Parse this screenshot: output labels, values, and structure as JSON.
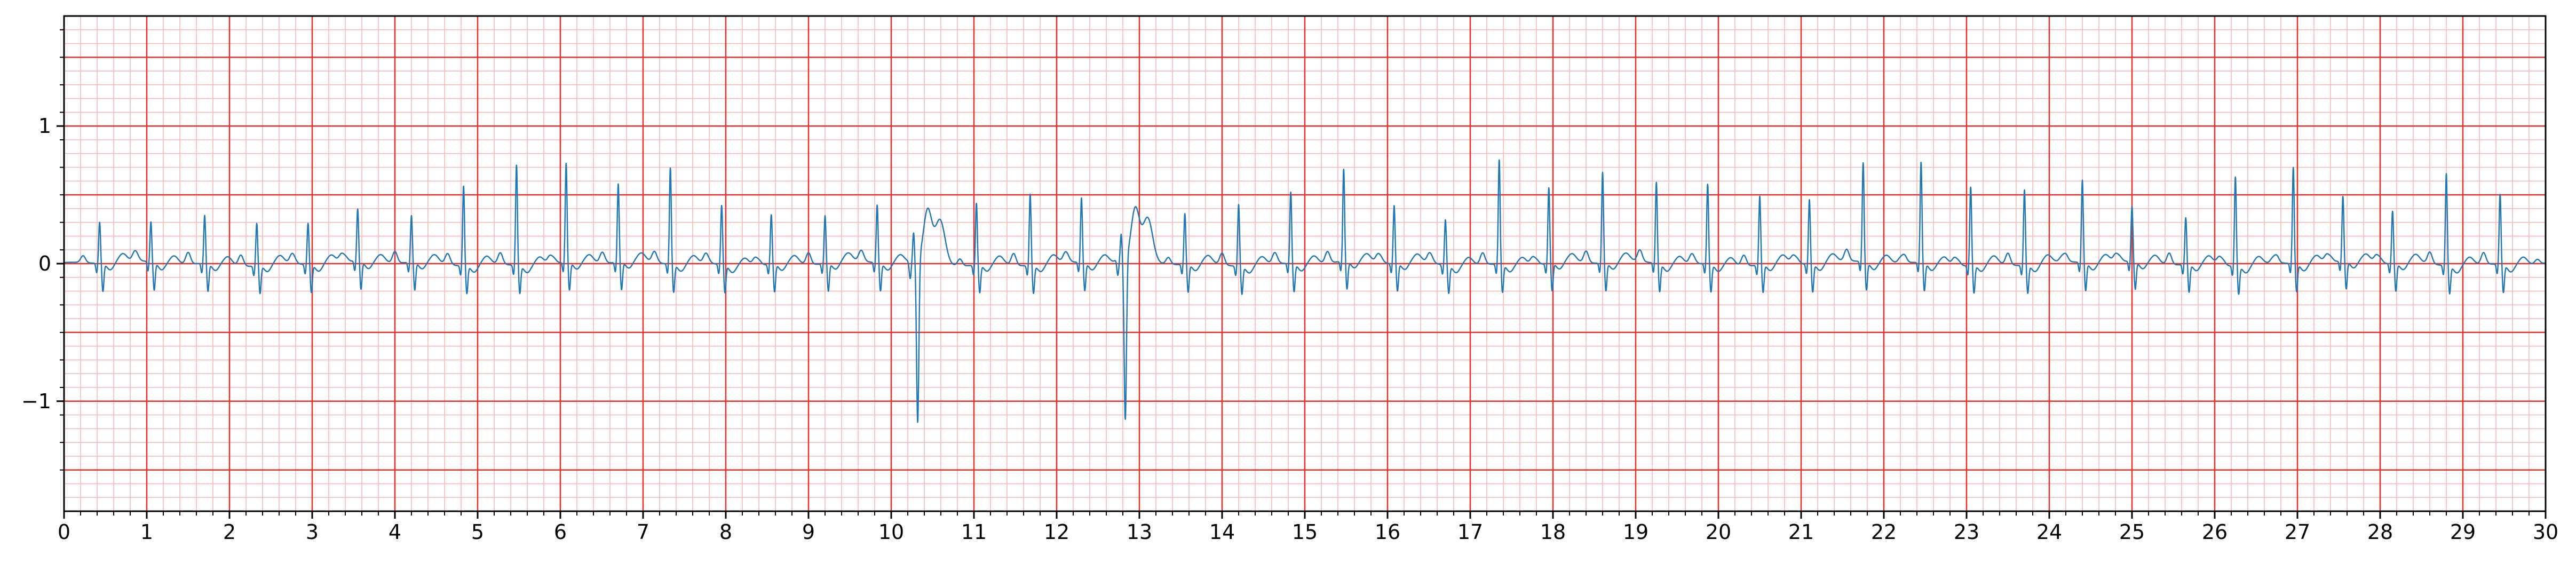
{
  "chart_data": {
    "type": "line",
    "title": "",
    "xlabel": "",
    "ylabel": "",
    "xlim": [
      0,
      30
    ],
    "ylim": [
      -1.8,
      1.8
    ],
    "grid": {
      "major": true,
      "minor": true,
      "major_x_step": 1,
      "minor_x_step": 0.2,
      "major_y_step": 0.5,
      "minor_y_step": 0.1,
      "major_color": "#e8302a",
      "minor_color": "#f7b5b5"
    },
    "x_ticks": [
      "0",
      "1",
      "2",
      "3",
      "4",
      "5",
      "6",
      "7",
      "8",
      "9",
      "10",
      "11",
      "12",
      "13",
      "14",
      "15",
      "16",
      "17",
      "18",
      "19",
      "20",
      "21",
      "22",
      "23",
      "24",
      "25",
      "26",
      "27",
      "28",
      "29",
      "30"
    ],
    "y_ticks": [
      {
        "value": 1,
        "label": "1"
      },
      {
        "value": 0,
        "label": "0"
      },
      {
        "value": -1,
        "label": "−1"
      }
    ],
    "series": [
      {
        "color": "#1f77b4",
        "beats": [
          {
            "t": 0.43,
            "amp": 0.3
          },
          {
            "t": 1.05,
            "amp": 0.29
          },
          {
            "t": 1.7,
            "amp": 0.35
          },
          {
            "t": 2.33,
            "amp": 0.31
          },
          {
            "t": 2.95,
            "amp": 0.3
          },
          {
            "t": 3.55,
            "amp": 0.38
          },
          {
            "t": 4.2,
            "amp": 0.34
          },
          {
            "t": 4.83,
            "amp": 0.58
          },
          {
            "t": 5.47,
            "amp": 0.73
          },
          {
            "t": 6.07,
            "amp": 0.72
          },
          {
            "t": 6.7,
            "amp": 0.57
          },
          {
            "t": 7.33,
            "amp": 0.7
          },
          {
            "t": 7.95,
            "amp": 0.43
          },
          {
            "t": 8.55,
            "amp": 0.36
          },
          {
            "t": 9.2,
            "amp": 0.35
          },
          {
            "t": 9.83,
            "amp": 0.42
          },
          {
            "t": 10.32,
            "amp": -1.2,
            "pvc": true
          },
          {
            "t": 11.03,
            "amp": 0.45
          },
          {
            "t": 11.68,
            "amp": 0.52
          },
          {
            "t": 12.3,
            "amp": 0.47
          },
          {
            "t": 12.83,
            "amp": -1.17,
            "pvc": true
          },
          {
            "t": 13.55,
            "amp": 0.37
          },
          {
            "t": 14.2,
            "amp": 0.45
          },
          {
            "t": 14.83,
            "amp": 0.52
          },
          {
            "t": 15.47,
            "amp": 0.67
          },
          {
            "t": 16.08,
            "amp": 0.42
          },
          {
            "t": 16.7,
            "amp": 0.33
          },
          {
            "t": 17.35,
            "amp": 0.76
          },
          {
            "t": 17.95,
            "amp": 0.55
          },
          {
            "t": 18.6,
            "amp": 0.66
          },
          {
            "t": 19.25,
            "amp": 0.59
          },
          {
            "t": 19.87,
            "amp": 0.58
          },
          {
            "t": 20.5,
            "amp": 0.5
          },
          {
            "t": 21.1,
            "amp": 0.47
          },
          {
            "t": 21.75,
            "amp": 0.72
          },
          {
            "t": 22.45,
            "amp": 0.73
          },
          {
            "t": 23.05,
            "amp": 0.57
          },
          {
            "t": 23.7,
            "amp": 0.55
          },
          {
            "t": 24.4,
            "amp": 0.6
          },
          {
            "t": 25.0,
            "amp": 0.4
          },
          {
            "t": 25.65,
            "amp": 0.34
          },
          {
            "t": 26.25,
            "amp": 0.65
          },
          {
            "t": 26.95,
            "amp": 0.7
          },
          {
            "t": 27.55,
            "amp": 0.47
          },
          {
            "t": 28.15,
            "amp": 0.38
          },
          {
            "t": 28.8,
            "amp": 0.67
          },
          {
            "t": 29.45,
            "amp": 0.51
          }
        ]
      }
    ]
  }
}
